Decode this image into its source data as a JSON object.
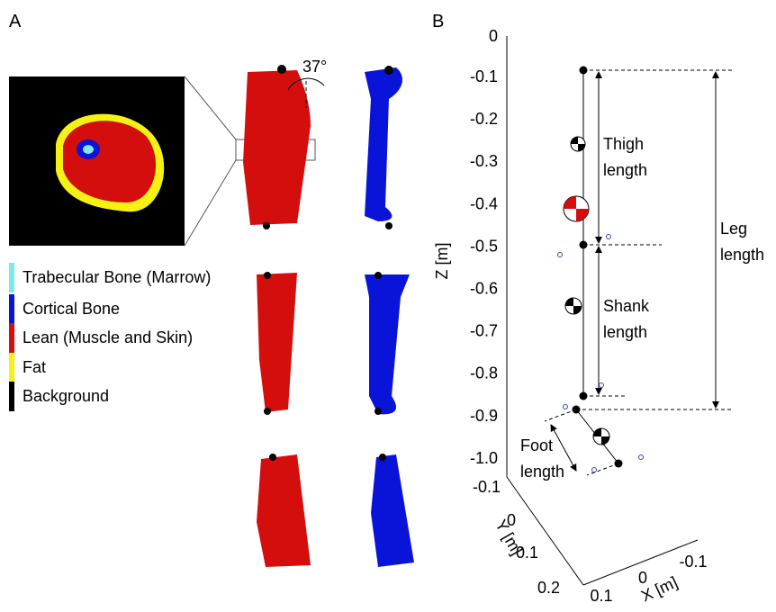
{
  "panel_labels": [
    "A",
    "B"
  ],
  "angle_label": "37°",
  "legend": {
    "items": [
      {
        "label": "Trabecular Bone (Marrow)",
        "color": "#7fe8e8"
      },
      {
        "label": "Cortical Bone",
        "color": "#0a14d8"
      },
      {
        "label": "Lean (Muscle and Skin)",
        "color": "#d40d0d"
      },
      {
        "label": "Fat",
        "color": "#f4f214"
      },
      {
        "label": "Background",
        "color": "#000000"
      }
    ]
  },
  "plot": {
    "z_axis": {
      "label": "Z [m]",
      "ticks": [
        "0",
        "-0.1",
        "-0.2",
        "-0.3",
        "-0.4",
        "-0.5",
        "-0.6",
        "-0.7",
        "-0.8",
        "-0.9",
        "-1.0"
      ]
    },
    "y_axis": {
      "label": "Y [m]",
      "ticks": [
        "-0.1",
        "0",
        "0.1",
        "0.2"
      ]
    },
    "x_axis": {
      "label": "X [m]",
      "ticks": [
        "0.1",
        "0",
        "-0.1"
      ]
    },
    "annotations": [
      {
        "lines": [
          "Thigh",
          "length"
        ]
      },
      {
        "lines": [
          "Shank",
          "length"
        ]
      },
      {
        "lines": [
          "Leg",
          "length"
        ]
      },
      {
        "lines": [
          "Foot",
          "length"
        ]
      }
    ]
  }
}
